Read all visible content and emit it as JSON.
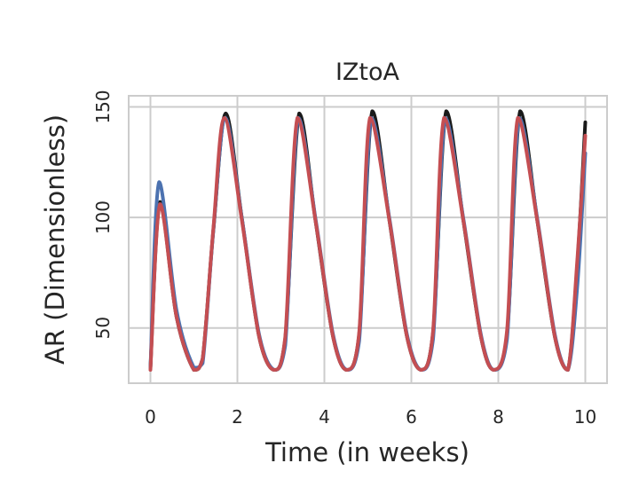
{
  "chart_data": {
    "type": "line",
    "title": "IZtoA",
    "xlabel": "Time (in weeks)",
    "ylabel": "AR (Dimensionless)",
    "xlim": [
      -0.5,
      10.5
    ],
    "ylim": [
      25,
      155
    ],
    "xticks": [
      0,
      2,
      4,
      6,
      8,
      10
    ],
    "yticks": [
      50,
      100,
      150
    ],
    "grid": true,
    "series": [
      {
        "color": "#1a1a1a",
        "x": [
          0,
          0.22,
          0.6,
          1.0,
          1.2,
          1.45,
          1.73,
          2.1,
          2.5,
          2.85,
          3.1,
          3.42,
          3.8,
          4.2,
          4.52,
          4.8,
          5.1,
          5.5,
          5.9,
          6.23,
          6.5,
          6.8,
          7.2,
          7.6,
          7.9,
          8.2,
          8.5,
          8.9,
          9.3,
          9.6,
          9.82,
          10.0
        ],
        "y": [
          32,
          107,
          55,
          31,
          36,
          95,
          147,
          100,
          46,
          31,
          45,
          147,
          98,
          46,
          31,
          47,
          148,
          98,
          46,
          31,
          48,
          148,
          98,
          46,
          31,
          47,
          148,
          98,
          46,
          31,
          80,
          143
        ]
      },
      {
        "color": "#4c72b0",
        "x": [
          0,
          0.2,
          0.6,
          1.0,
          1.2,
          1.45,
          1.72,
          2.1,
          2.5,
          2.85,
          3.1,
          3.4,
          3.8,
          4.2,
          4.52,
          4.8,
          5.08,
          5.5,
          5.9,
          6.23,
          6.5,
          6.78,
          7.2,
          7.6,
          7.9,
          8.2,
          8.48,
          8.9,
          9.3,
          9.6,
          9.82,
          10.0
        ],
        "y": [
          32,
          116,
          58,
          32,
          34,
          95,
          145,
          100,
          47,
          31,
          42,
          145,
          99,
          47,
          31,
          44,
          145,
          99,
          47,
          31,
          45,
          145,
          99,
          47,
          31,
          45,
          145,
          99,
          47,
          31,
          70,
          129
        ]
      },
      {
        "color": "#c44e52",
        "x": [
          0,
          0.22,
          0.6,
          1.0,
          1.2,
          1.45,
          1.7,
          2.1,
          2.5,
          2.85,
          3.1,
          3.38,
          3.8,
          4.2,
          4.52,
          4.8,
          5.05,
          5.5,
          5.9,
          6.23,
          6.5,
          6.75,
          7.2,
          7.6,
          7.9,
          8.2,
          8.45,
          8.9,
          9.3,
          9.6,
          9.82,
          10.0
        ],
        "y": [
          31,
          106,
          55,
          31,
          36,
          96,
          145,
          99,
          46,
          31,
          46,
          145,
          98,
          46,
          31,
          48,
          145,
          98,
          46,
          31,
          49,
          145,
          98,
          46,
          31,
          49,
          145,
          98,
          46,
          31,
          82,
          137
        ]
      }
    ]
  }
}
